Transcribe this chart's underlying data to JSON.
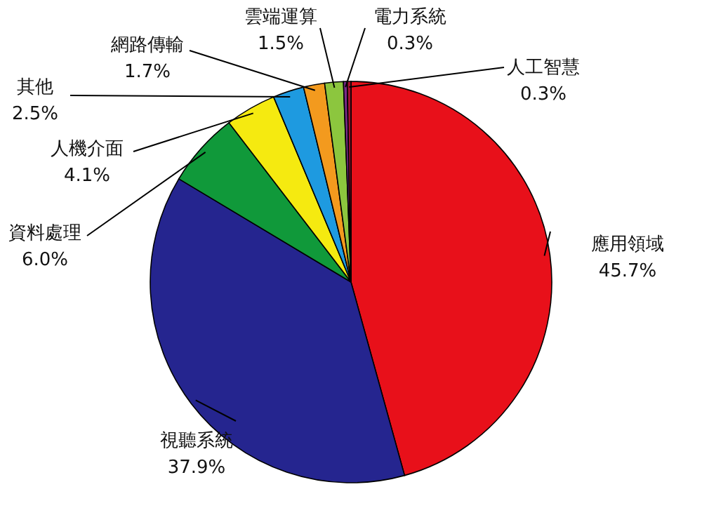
{
  "chart_data": {
    "type": "pie",
    "categories": [
      "應用領域",
      "視聽系統",
      "資料處理",
      "人機介面",
      "其他",
      "網路傳輸",
      "雲端運算",
      "電力系統",
      "人工智慧"
    ],
    "values": [
      45.7,
      37.9,
      6.0,
      4.1,
      2.5,
      1.7,
      1.5,
      0.3,
      0.3
    ],
    "value_labels": [
      "45.7%",
      "37.9%",
      "6.0%",
      "4.1%",
      "2.5%",
      "1.7%",
      "1.5%",
      "0.3%",
      "0.3%"
    ],
    "colors": [
      "#e8101a",
      "#25258f",
      "#10993a",
      "#f5ea10",
      "#1e9ae0",
      "#f39a1e",
      "#8cc63e",
      "#7a2a8a",
      "#a01030"
    ]
  }
}
